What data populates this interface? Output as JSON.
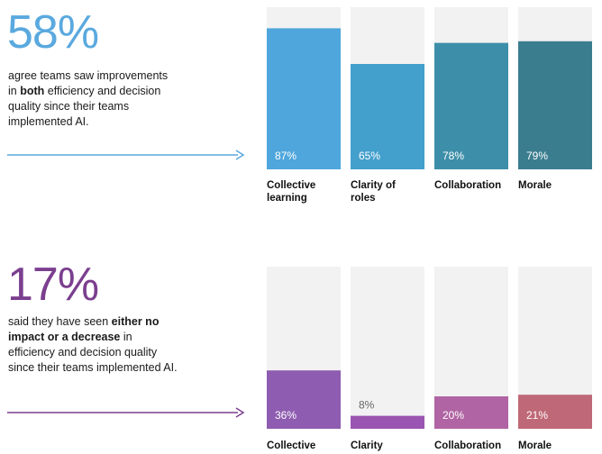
{
  "colors": {
    "background": "#ffffff",
    "track": "#f2f2f2",
    "top_accent": "#5aa9df",
    "bottom_accent": "#7b3f8f"
  },
  "top": {
    "stat": "58%",
    "desc_1": "agree teams saw improvements in ",
    "desc_bold": "both",
    "desc_2": " efficiency and decision quality since their teams implemented AI."
  },
  "bottom": {
    "stat": "17%",
    "desc_1": "said they have seen ",
    "desc_bold": "either no impact or a decrease",
    "desc_2": " in efficiency and decision quality since their teams implemented AI."
  },
  "chart_data": [
    {
      "type": "bar",
      "categories": [
        "Collective learning",
        "Clarity of roles",
        "Collaboration",
        "Morale"
      ],
      "values": [
        87,
        65,
        78,
        79
      ],
      "data_labels": [
        "87%",
        "65%",
        "78%",
        "79%"
      ],
      "ylim": [
        0,
        100
      ],
      "colors": [
        "#4ea6dc",
        "#439fcc",
        "#3d8fa9",
        "#3a7d8f"
      ],
      "title": "",
      "xlabel": "",
      "ylabel": ""
    },
    {
      "type": "bar",
      "categories": [
        "Collective",
        "Clarity",
        "Collaboration",
        "Morale"
      ],
      "values": [
        36,
        8,
        20,
        21
      ],
      "data_labels": [
        "36%",
        "8%",
        "20%",
        "21%"
      ],
      "ylim": [
        0,
        100
      ],
      "colors": [
        "#8e5cb0",
        "#9a55b2",
        "#b064a3",
        "#bf6877"
      ],
      "title": "",
      "xlabel": "",
      "ylabel": ""
    }
  ]
}
